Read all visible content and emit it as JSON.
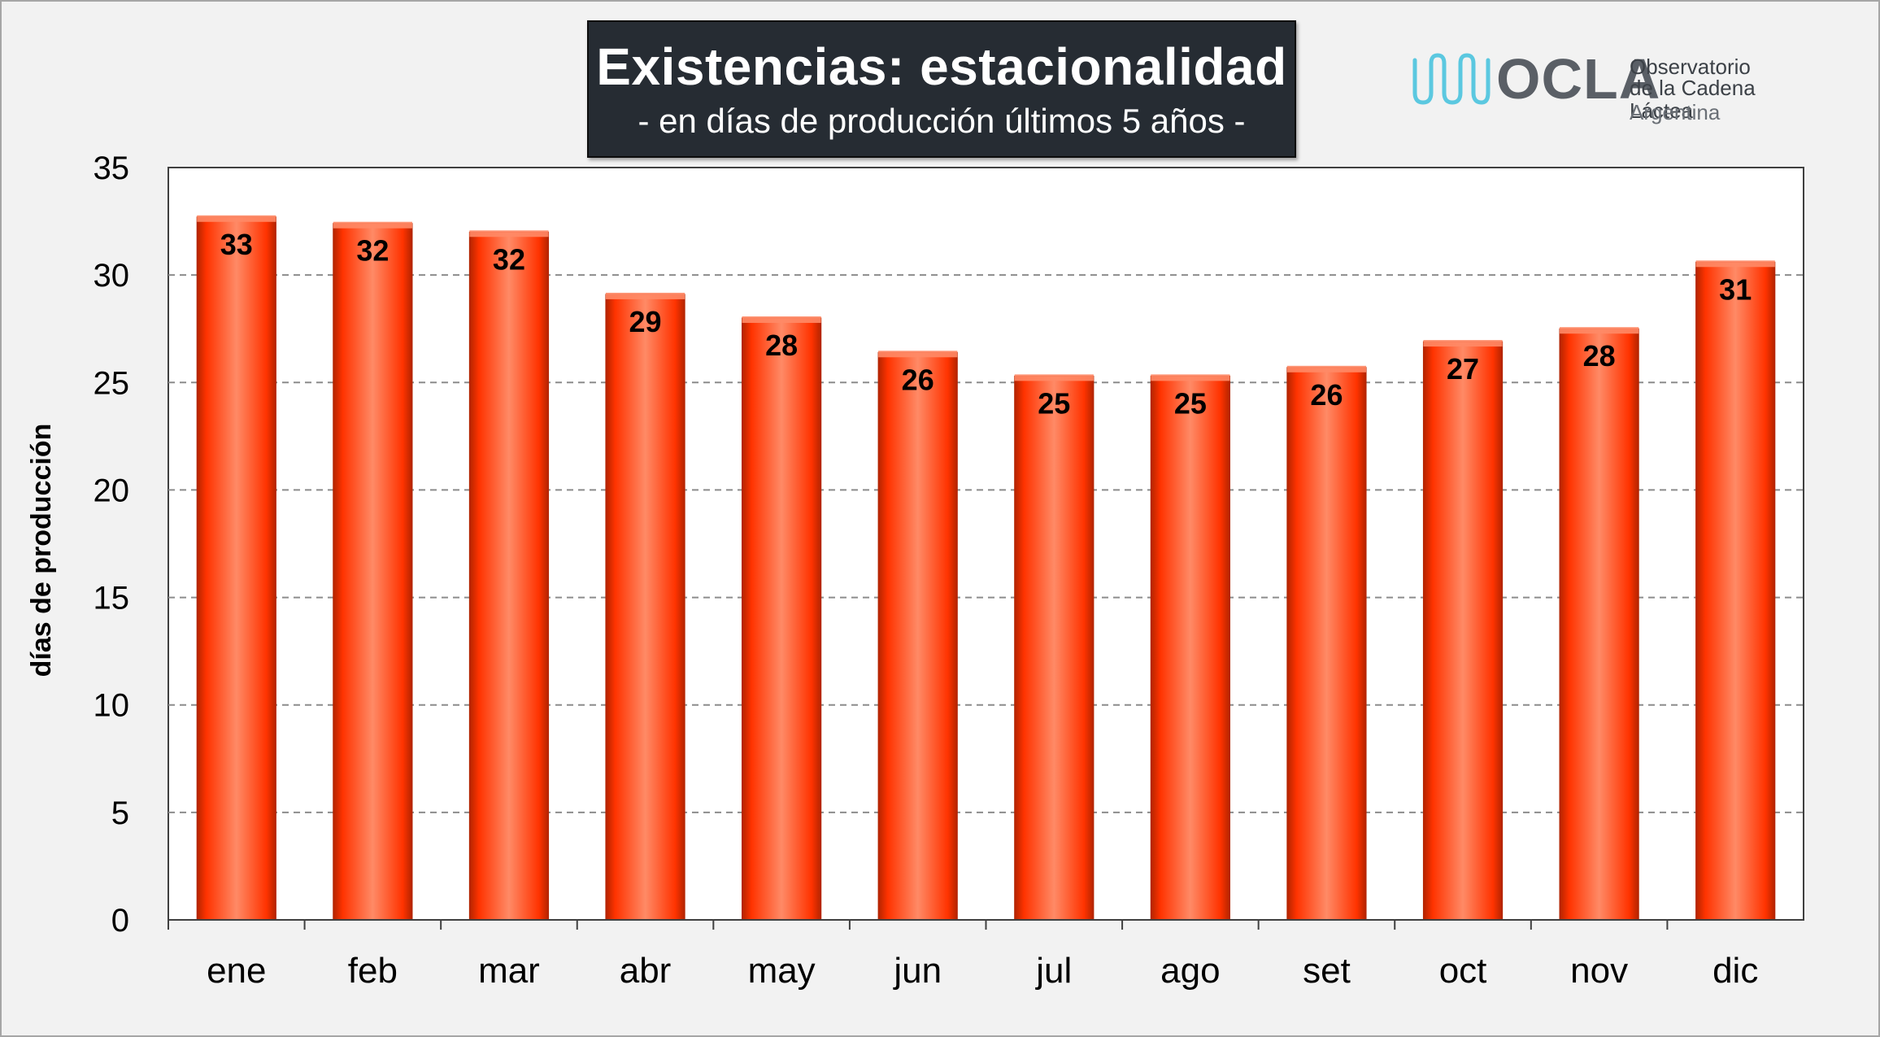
{
  "header": {
    "title": "Existencias: estacionalidad",
    "subtitle": "- en días de producción últimos 5 años -"
  },
  "logo": {
    "word": "OCLA",
    "line1": "Observatorio",
    "line2": "de la Cadena Láctea",
    "line3": "Argentina"
  },
  "colors": {
    "bar": "#ff3300",
    "bar_dark": "#b32400",
    "bar_light": "#ff8a66",
    "title_bg": "#262c33",
    "logo_wave": "#5bc8e0",
    "grid": "#8c8c8c"
  },
  "chart_data": {
    "type": "bar",
    "categories": [
      "ene",
      "feb",
      "mar",
      "abr",
      "may",
      "jun",
      "jul",
      "ago",
      "set",
      "oct",
      "nov",
      "dic"
    ],
    "values": [
      32.7,
      32.4,
      32.0,
      29.1,
      28.0,
      26.4,
      25.3,
      25.3,
      25.7,
      26.9,
      27.5,
      30.6
    ],
    "data_labels": [
      "33",
      "32",
      "32",
      "29",
      "28",
      "26",
      "25",
      "25",
      "26",
      "27",
      "28",
      "31"
    ],
    "ylabel": "días de producción",
    "xlabel": "",
    "ylim": [
      0,
      35
    ],
    "yticks": [
      0,
      5,
      10,
      15,
      20,
      25,
      30,
      35
    ],
    "grid": "horizontal dashed",
    "legend": "none"
  }
}
